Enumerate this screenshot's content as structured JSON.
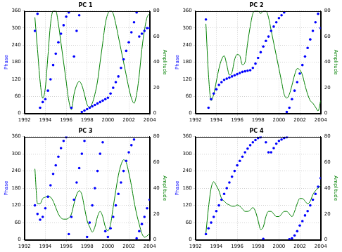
{
  "chart_data": [
    {
      "type": "scatter",
      "title": "PC 1",
      "x": [
        1993,
        1993.25,
        1993.5,
        1993.75,
        1994,
        1994.25,
        1994.5,
        1994.75,
        1995,
        1995.25,
        1995.5,
        1995.75,
        1996,
        1996.25,
        1996.5,
        1996.75,
        1997,
        1997.25,
        1997.5,
        1997.75,
        1998,
        1998.25,
        1998.5,
        1998.75,
        1999,
        1999.25,
        1999.5,
        1999.75,
        2000,
        2000.25,
        2000.5,
        2000.75,
        2001,
        2001.25,
        2001.5,
        2001.75,
        2002,
        2002.25,
        2002.5,
        2002.75,
        2003,
        2003.25,
        2003.5,
        2003.75,
        2004
      ],
      "xlim": [
        1992,
        2004
      ],
      "xticks": [
        1992,
        1994,
        1996,
        1998,
        2000,
        2002,
        2004
      ],
      "ylabel": "Phase",
      "ylim": [
        0,
        360
      ],
      "yticks": [
        0,
        60,
        120,
        180,
        240,
        300,
        360
      ],
      "y2label": "Amplitude",
      "y2lim": [
        0,
        80
      ],
      "y2ticks": [
        0,
        20,
        40,
        60,
        80
      ],
      "grid": true,
      "series": [
        {
          "type": "scatter",
          "marker": "circle",
          "color": "#0000ff",
          "values": [
            290,
            350,
            20,
            40,
            50,
            80,
            120,
            170,
            210,
            250,
            280,
            310,
            340,
            355,
            20,
            200,
            290,
            345,
            5,
            10,
            15,
            20,
            25,
            30,
            35,
            40,
            45,
            50,
            55,
            70,
            90,
            110,
            130,
            160,
            190,
            220,
            250,
            285,
            320,
            355,
            270,
            280,
            290,
            300,
            300
          ]
        },
        {
          "type": "line",
          "axis": "y2",
          "color": "#008000",
          "values": [
            75,
            50,
            25,
            12,
            20,
            45,
            70,
            80,
            80,
            70,
            55,
            40,
            25,
            10,
            3,
            15,
            22,
            25,
            22,
            15,
            7,
            5,
            8,
            15,
            25,
            40,
            55,
            70,
            78,
            80,
            78,
            70,
            60,
            50,
            40,
            30,
            20,
            12,
            8,
            15,
            30,
            50,
            65,
            75,
            78
          ]
        }
      ]
    },
    {
      "type": "scatter",
      "title": "PC 2",
      "x": [
        1993,
        1993.25,
        1993.5,
        1993.75,
        1994,
        1994.25,
        1994.5,
        1994.75,
        1995,
        1995.25,
        1995.5,
        1995.75,
        1996,
        1996.25,
        1996.5,
        1996.75,
        1997,
        1997.25,
        1997.5,
        1997.75,
        1998,
        1998.25,
        1998.5,
        1998.75,
        1999,
        1999.25,
        1999.5,
        1999.75,
        2000,
        2000.25,
        2000.5,
        2000.75,
        2001,
        2001.25,
        2001.5,
        2001.75,
        2002,
        2002.25,
        2002.5,
        2002.75,
        2003,
        2003.25,
        2003.5,
        2003.75,
        2004
      ],
      "xlim": [
        1992,
        2004
      ],
      "xticks": [
        1992,
        1994,
        1996,
        1998,
        2000,
        2002,
        2004
      ],
      "ylabel": "Phase",
      "ylim": [
        0,
        360
      ],
      "yticks": [
        0,
        60,
        120,
        180,
        240,
        300,
        360
      ],
      "y2label": "Amplitude",
      "y2lim": [
        0,
        80
      ],
      "y2ticks": [
        0,
        20,
        40,
        60,
        80
      ],
      "grid": true,
      "series": [
        {
          "type": "scatter",
          "marker": "circle",
          "color": "#0000ff",
          "values": [
            330,
            20,
            50,
            70,
            85,
            100,
            110,
            118,
            122,
            126,
            130,
            134,
            138,
            142,
            146,
            148,
            150,
            152,
            160,
            175,
            195,
            215,
            235,
            255,
            270,
            290,
            305,
            320,
            335,
            345,
            355,
            5,
            20,
            50,
            80,
            110,
            140,
            170,
            200,
            230,
            260,
            290,
            320,
            350,
            300
          ]
        },
        {
          "type": "line",
          "axis": "y2",
          "color": "#008000",
          "values": [
            70,
            30,
            10,
            15,
            25,
            35,
            42,
            45,
            38,
            30,
            32,
            42,
            46,
            45,
            38,
            40,
            55,
            68,
            78,
            80,
            80,
            78,
            80,
            80,
            75,
            65,
            55,
            45,
            35,
            25,
            15,
            12,
            15,
            22,
            30,
            35,
            34,
            30,
            22,
            15,
            10,
            8,
            5,
            2,
            10
          ]
        }
      ]
    },
    {
      "type": "scatter",
      "title": "PC 3",
      "x": [
        1993,
        1993.25,
        1993.5,
        1993.75,
        1994,
        1994.25,
        1994.5,
        1994.75,
        1995,
        1995.25,
        1995.5,
        1995.75,
        1996,
        1996.25,
        1996.5,
        1996.75,
        1997,
        1997.25,
        1997.5,
        1997.75,
        1998,
        1998.25,
        1998.5,
        1998.75,
        1999,
        1999.25,
        1999.5,
        1999.75,
        2000,
        2000.25,
        2000.5,
        2000.75,
        2001,
        2001.25,
        2001.5,
        2001.75,
        2002,
        2002.25,
        2002.5,
        2002.75,
        2003,
        2003.25,
        2003.5,
        2003.75,
        2004
      ],
      "xlim": [
        1992,
        2004
      ],
      "xticks": [
        1992,
        1994,
        1996,
        1998,
        2000,
        2002,
        2004
      ],
      "ylabel": "Phase",
      "ylim": [
        0,
        360
      ],
      "yticks": [
        0,
        60,
        120,
        180,
        240,
        300,
        360
      ],
      "y2label": "Amplitude",
      "y2lim": [
        0,
        80
      ],
      "y2ticks": [
        0,
        20,
        40,
        60,
        80
      ],
      "grid": true,
      "series": [
        {
          "type": "scatter",
          "marker": "circle",
          "color": "#0000ff",
          "values": [
            120,
            90,
            70,
            80,
            110,
            150,
            190,
            230,
            260,
            290,
            320,
            345,
            358,
            20,
            80,
            140,
            200,
            250,
            300,
            345,
            10,
            60,
            120,
            180,
            240,
            300,
            340,
            30,
            10,
            40,
            80,
            120,
            160,
            200,
            240,
            275,
            305,
            330,
            350,
            5,
            30,
            55,
            80,
            110,
            140
          ]
        },
        {
          "type": "line",
          "axis": "y2",
          "color": "#008000",
          "values": [
            55,
            28,
            28,
            32,
            33,
            34,
            33,
            30,
            25,
            20,
            17,
            16,
            16,
            17,
            20,
            28,
            35,
            38,
            35,
            25,
            15,
            10,
            6,
            10,
            18,
            22,
            18,
            10,
            7,
            12,
            25,
            38,
            50,
            58,
            62,
            60,
            52,
            42,
            30,
            20,
            12,
            5,
            2,
            3,
            5
          ]
        }
      ]
    },
    {
      "type": "scatter",
      "title": "PC 4",
      "x": [
        1993,
        1993.25,
        1993.5,
        1993.75,
        1994,
        1994.25,
        1994.5,
        1994.75,
        1995,
        1995.25,
        1995.5,
        1995.75,
        1996,
        1996.25,
        1996.5,
        1996.75,
        1997,
        1997.25,
        1997.5,
        1997.75,
        1998,
        1998.25,
        1998.5,
        1998.75,
        1999,
        1999.25,
        1999.5,
        1999.75,
        2000,
        2000.25,
        2000.5,
        2000.75,
        2001,
        2001.25,
        2001.5,
        2001.75,
        2002,
        2002.25,
        2002.5,
        2002.75,
        2003,
        2003.25,
        2003.5,
        2003.75,
        2004
      ],
      "xlim": [
        1992,
        2004
      ],
      "xticks": [
        1992,
        1994,
        1996,
        1998,
        2000,
        2002,
        2004
      ],
      "ylabel": "Phase",
      "ylim": [
        0,
        360
      ],
      "yticks": [
        0,
        60,
        120,
        180,
        240,
        300,
        360
      ],
      "y2label": "Amplitude",
      "y2lim": [
        0,
        80
      ],
      "y2ticks": [
        0,
        20,
        40,
        60,
        80
      ],
      "grid": true,
      "series": [
        {
          "type": "scatter",
          "marker": "circle",
          "color": "#0000ff",
          "values": [
            20,
            40,
            60,
            80,
            100,
            120,
            140,
            160,
            180,
            200,
            220,
            240,
            260,
            275,
            290,
            305,
            318,
            330,
            340,
            348,
            355,
            358,
            3,
            340,
            305,
            305,
            320,
            335,
            345,
            350,
            355,
            358,
            2,
            5,
            15,
            30,
            50,
            65,
            85,
            100,
            120,
            140,
            160,
            185,
            215
          ]
        },
        {
          "type": "line",
          "axis": "y2",
          "color": "#008000",
          "values": [
            5,
            25,
            40,
            45,
            42,
            38,
            32,
            30,
            28,
            27,
            26,
            26,
            27,
            26,
            24,
            22,
            22,
            23,
            25,
            22,
            15,
            8,
            10,
            18,
            22,
            22,
            20,
            18,
            18,
            20,
            22,
            22,
            20,
            18,
            22,
            28,
            32,
            32,
            30,
            28,
            30,
            35,
            38,
            40,
            42
          ]
        }
      ]
    }
  ]
}
